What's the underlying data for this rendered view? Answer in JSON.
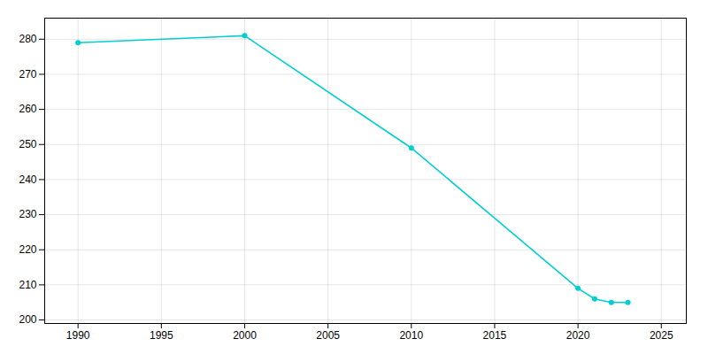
{
  "chart_data": {
    "type": "line",
    "x": [
      1990,
      2000,
      2010,
      2020,
      2021,
      2022,
      2023
    ],
    "values": [
      279,
      281,
      249,
      209,
      206,
      205,
      205
    ],
    "color": "#00CED1",
    "marker": "circle",
    "xlim": [
      1988,
      2026.5
    ],
    "ylim": [
      199,
      286
    ],
    "xticks": [
      1990,
      1995,
      2000,
      2005,
      2010,
      2015,
      2020,
      2025
    ],
    "yticks": [
      200,
      210,
      220,
      230,
      240,
      250,
      260,
      270,
      280
    ],
    "grid": true
  }
}
